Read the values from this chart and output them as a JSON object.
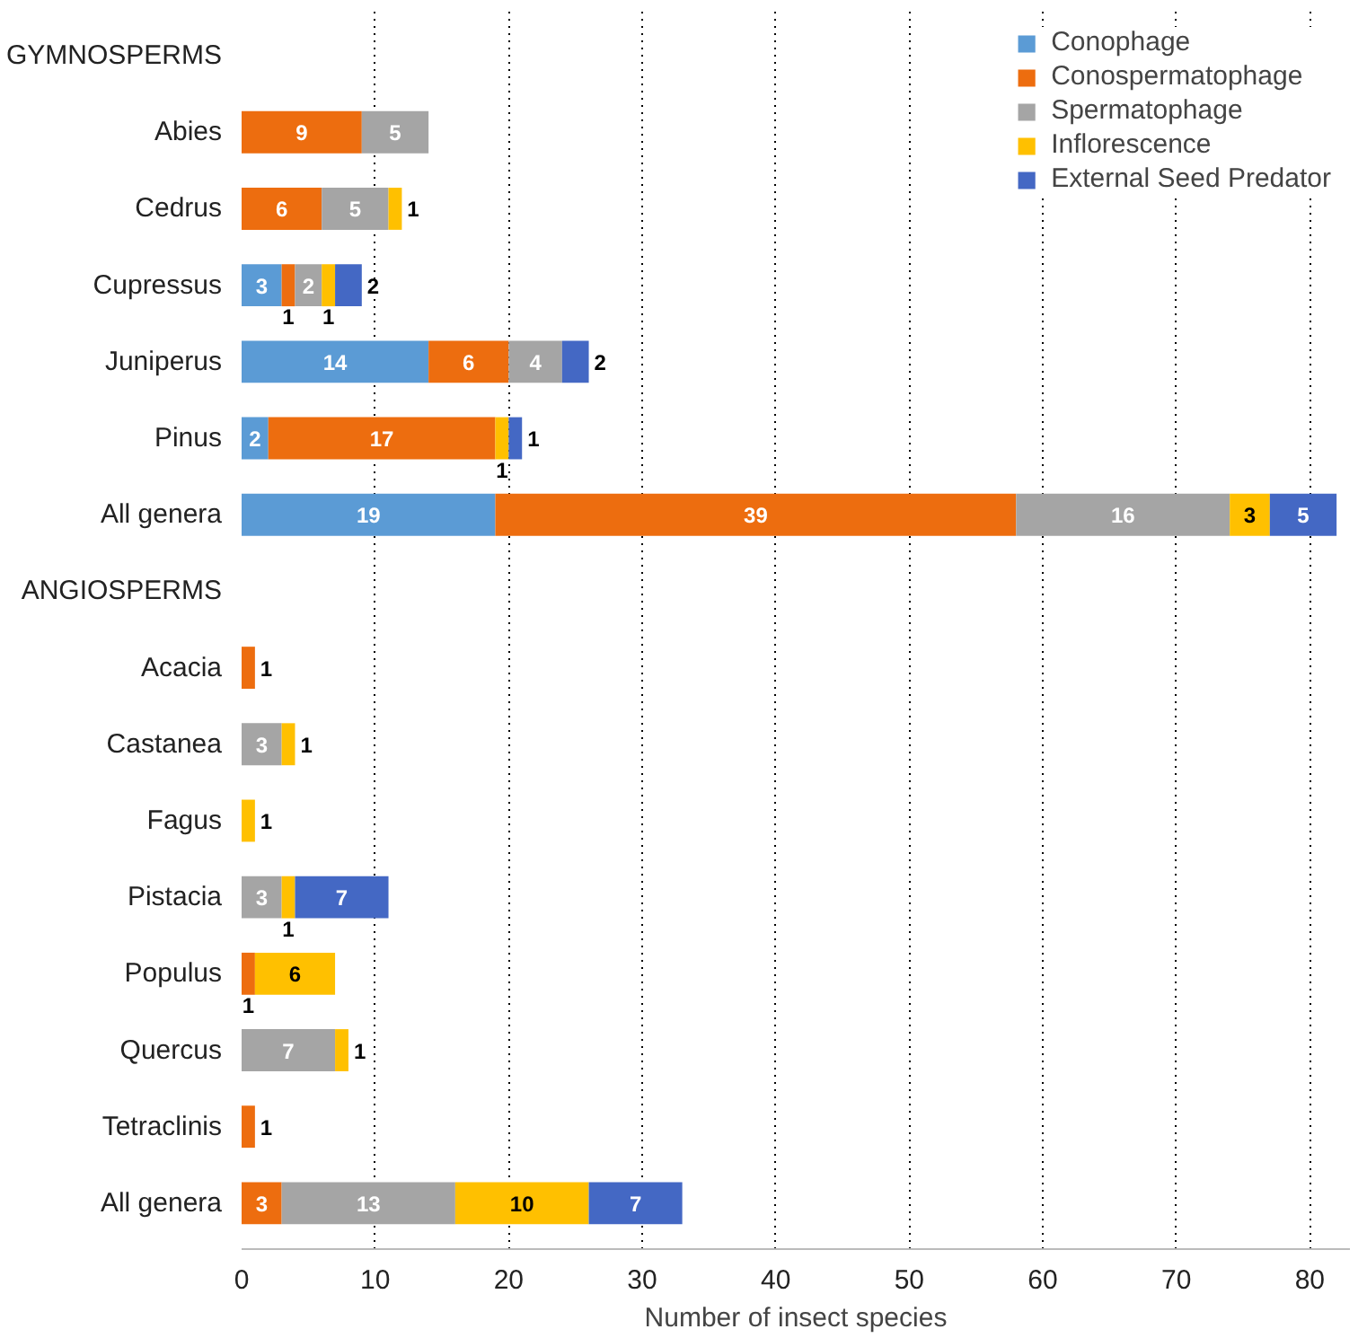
{
  "chart_data": {
    "type": "bar",
    "orientation": "horizontal",
    "stacked": true,
    "xlabel": "Number of insect species",
    "categories": [
      "GYMNOSPERMS",
      "Abies",
      "Cedrus",
      "Cupressus",
      "Juniperus",
      "Pinus",
      "All genera",
      "ANGIOSPERMS",
      "Acacia",
      "Castanea",
      "Fagus",
      "Pistacia",
      "Populus",
      "Quercus",
      "Tetraclinis",
      "All genera"
    ],
    "series": [
      {
        "name": "Conophage",
        "color": "#5b9bd5",
        "values": [
          null,
          null,
          null,
          3,
          14,
          2,
          19,
          null,
          null,
          null,
          null,
          null,
          null,
          null,
          null,
          null
        ]
      },
      {
        "name": "Conospermatophage",
        "color": "#ed6d0f",
        "values": [
          null,
          9,
          6,
          1,
          6,
          17,
          39,
          null,
          1,
          null,
          null,
          null,
          1,
          null,
          1,
          3
        ]
      },
      {
        "name": "Spermatophage",
        "color": "#a5a5a5",
        "values": [
          null,
          5,
          5,
          2,
          4,
          null,
          16,
          null,
          null,
          3,
          null,
          3,
          null,
          7,
          null,
          13
        ]
      },
      {
        "name": "Inflorescence",
        "color": "#ffc000",
        "values": [
          null,
          null,
          1,
          1,
          null,
          1,
          3,
          null,
          null,
          1,
          1,
          1,
          6,
          1,
          null,
          10
        ]
      },
      {
        "name": "External Seed Predator",
        "color": "#4468c4",
        "values": [
          null,
          null,
          null,
          2,
          2,
          1,
          5,
          null,
          null,
          null,
          null,
          7,
          null,
          null,
          null,
          7
        ]
      }
    ],
    "data_labels": true,
    "xlim": [
      0,
      83
    ],
    "xticks": [
      0,
      10,
      20,
      30,
      40,
      50,
      60,
      70,
      80
    ],
    "grid": "x",
    "legend": "top right"
  }
}
